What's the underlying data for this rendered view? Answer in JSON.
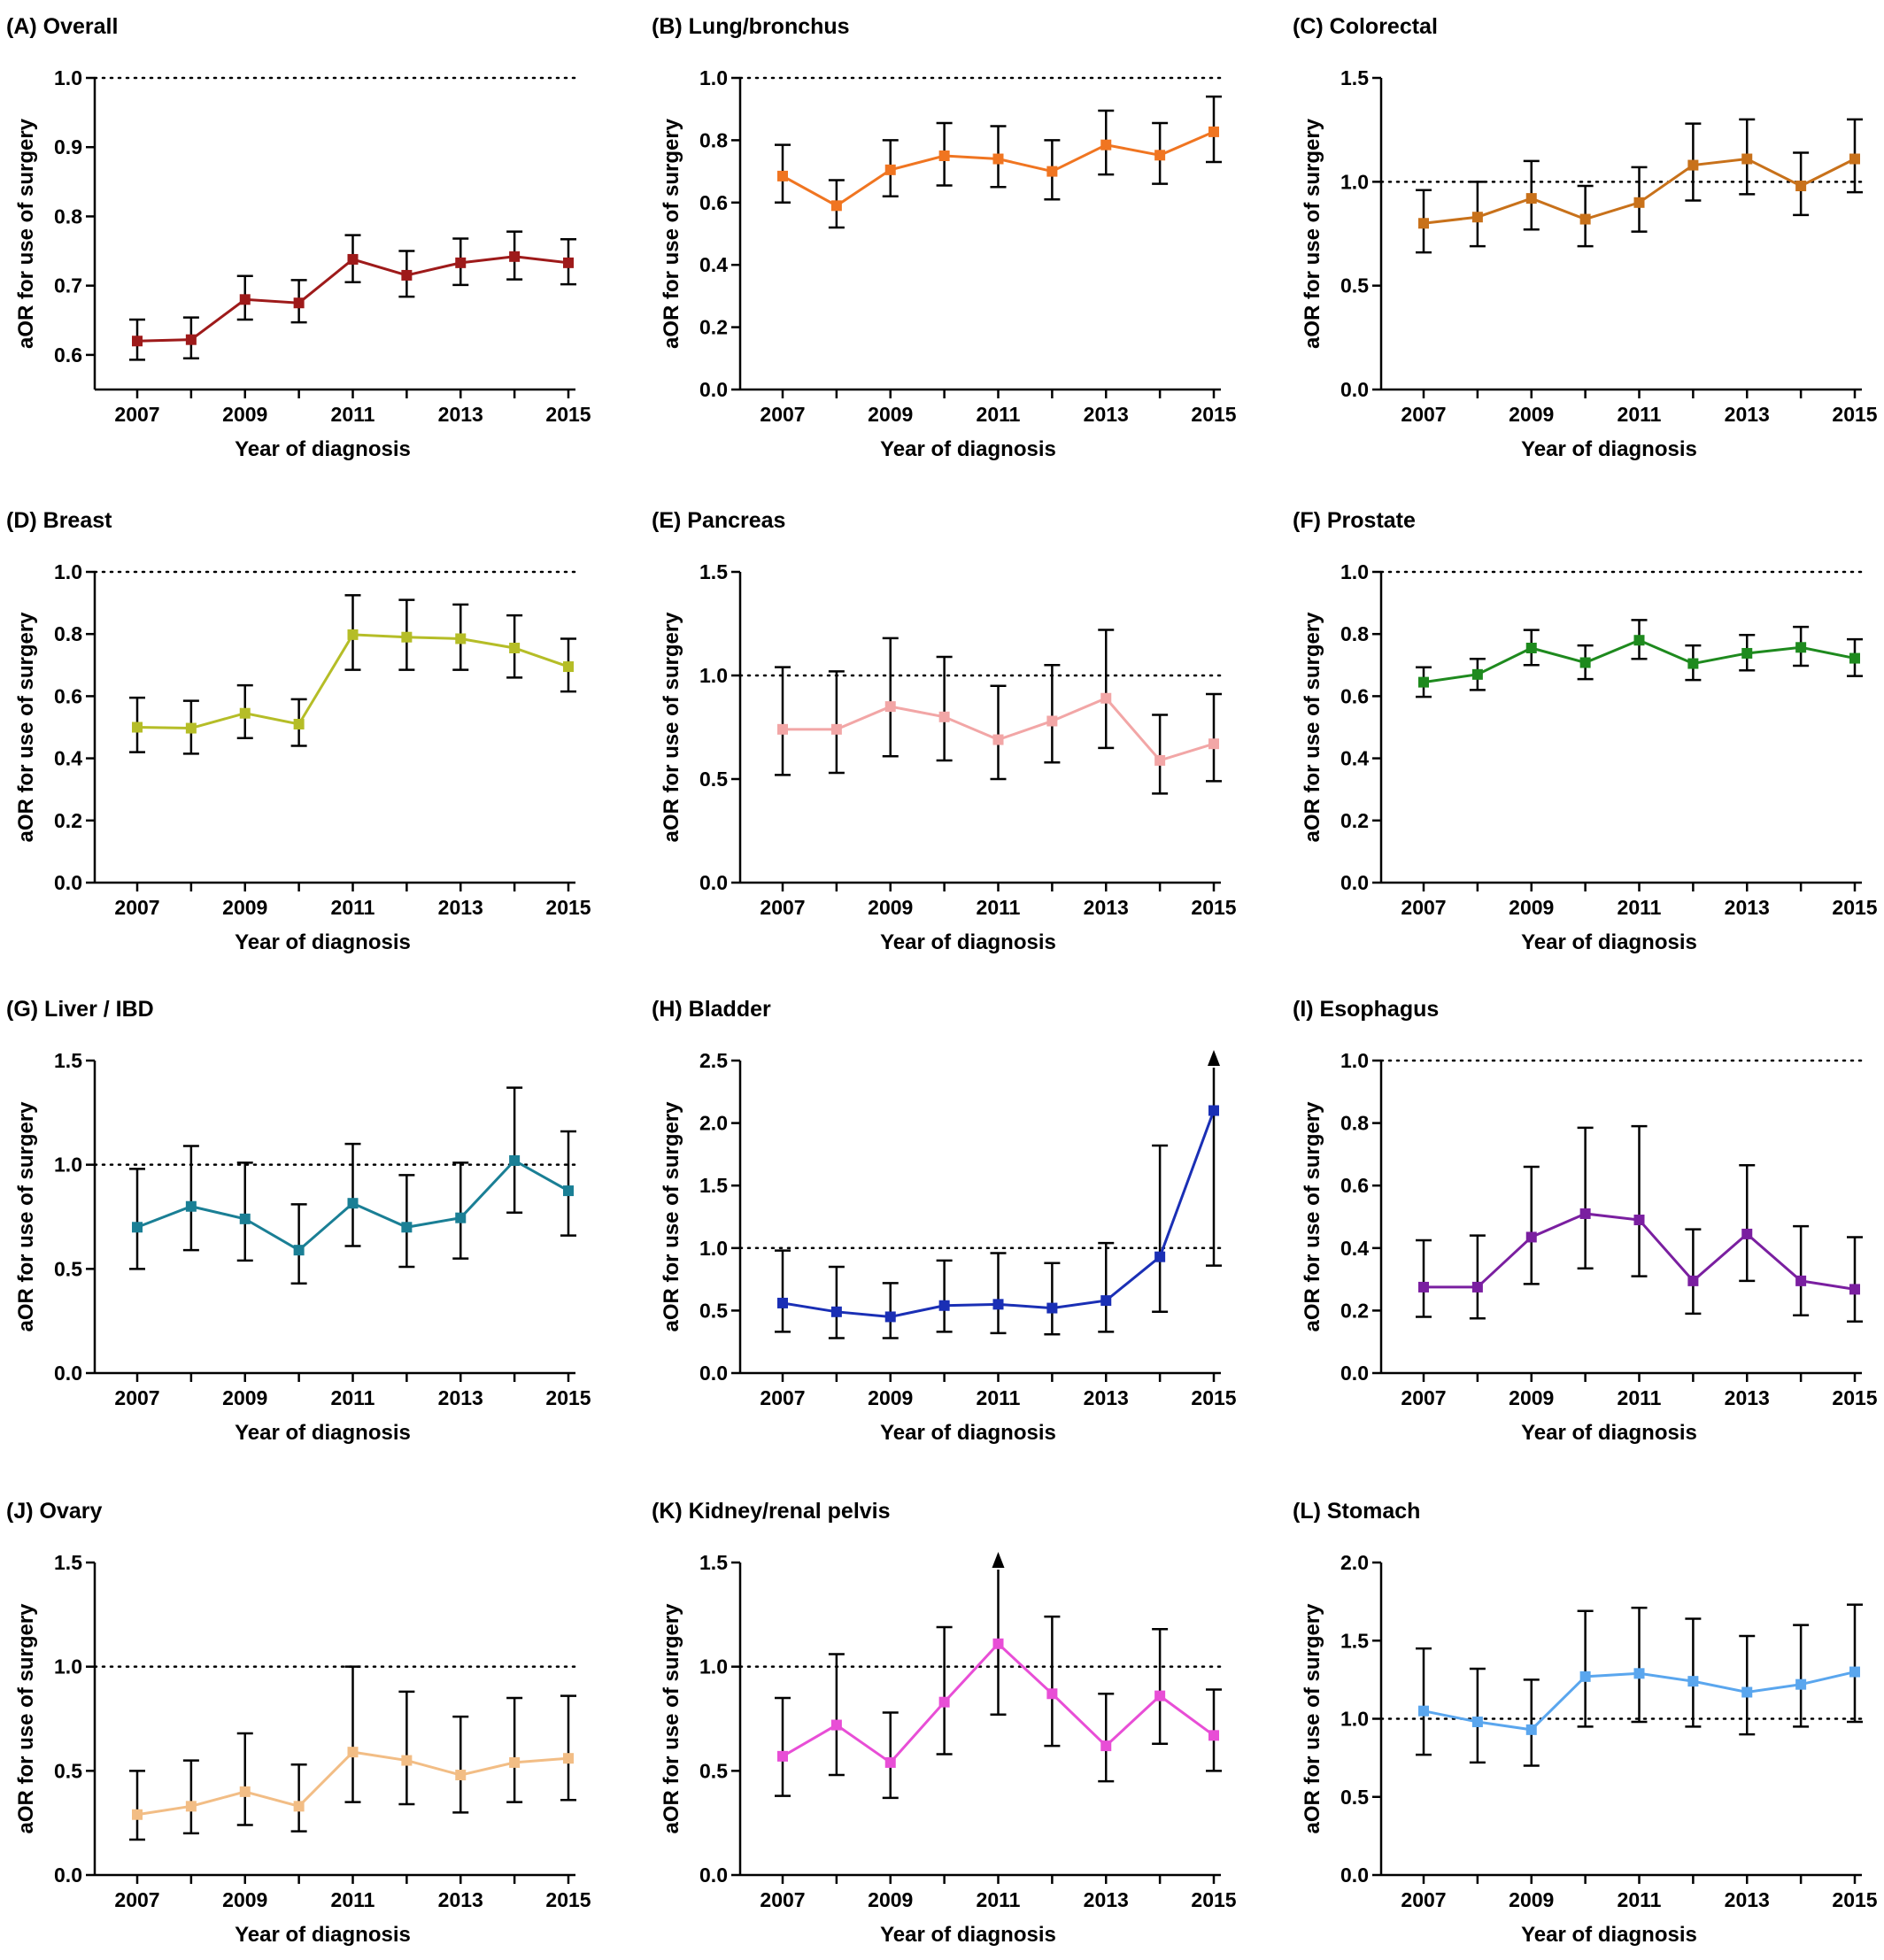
{
  "figure": {
    "x_label": "Year of diagnosis",
    "y_label": "aOR for use of surgery",
    "reference_line": 1.0
  },
  "chart_data": [
    {
      "type": "line",
      "panel": "(A)",
      "title": "Overall",
      "color": "#9e1a1a",
      "ylim": [
        0.55,
        1.0
      ],
      "yticks": [
        "0.6",
        "0.7",
        "0.8",
        "0.9",
        "1.0"
      ],
      "x": [
        2007,
        2008,
        2009,
        2010,
        2011,
        2012,
        2013,
        2014,
        2015
      ],
      "xticks": [
        "2007",
        "2009",
        "2011",
        "2013",
        "2015"
      ],
      "values": [
        0.62,
        0.622,
        0.68,
        0.675,
        0.738,
        0.715,
        0.733,
        0.742,
        0.733
      ],
      "ci_low": [
        0.593,
        0.595,
        0.651,
        0.647,
        0.705,
        0.684,
        0.701,
        0.709,
        0.702
      ],
      "ci_high": [
        0.651,
        0.654,
        0.714,
        0.708,
        0.773,
        0.75,
        0.768,
        0.778,
        0.767
      ],
      "arrow_index": null
    },
    {
      "type": "line",
      "panel": "(B)",
      "title": "Lung/bronchus",
      "color": "#f07521",
      "ylim": [
        0.0,
        1.0
      ],
      "yticks": [
        "0.0",
        "0.2",
        "0.4",
        "0.6",
        "0.8",
        "1.0"
      ],
      "x": [
        2007,
        2008,
        2009,
        2010,
        2011,
        2012,
        2013,
        2014,
        2015
      ],
      "xticks": [
        "2007",
        "2009",
        "2011",
        "2013",
        "2015"
      ],
      "values": [
        0.685,
        0.59,
        0.705,
        0.75,
        0.74,
        0.7,
        0.785,
        0.752,
        0.827
      ],
      "ci_low": [
        0.6,
        0.52,
        0.62,
        0.655,
        0.65,
        0.61,
        0.69,
        0.66,
        0.73
      ],
      "ci_high": [
        0.785,
        0.672,
        0.8,
        0.855,
        0.845,
        0.8,
        0.895,
        0.855,
        0.94
      ],
      "arrow_index": null
    },
    {
      "type": "line",
      "panel": "(C)",
      "title": "Colorectal",
      "color": "#c8711a",
      "ylim": [
        0.0,
        1.5
      ],
      "yticks": [
        "0.0",
        "0.5",
        "1.0",
        "1.5"
      ],
      "x": [
        2007,
        2008,
        2009,
        2010,
        2011,
        2012,
        2013,
        2014,
        2015
      ],
      "xticks": [
        "2007",
        "2009",
        "2011",
        "2013",
        "2015"
      ],
      "values": [
        0.8,
        0.83,
        0.92,
        0.82,
        0.9,
        1.08,
        1.11,
        0.98,
        1.11
      ],
      "ci_low": [
        0.66,
        0.69,
        0.77,
        0.69,
        0.76,
        0.91,
        0.94,
        0.84,
        0.95
      ],
      "ci_high": [
        0.96,
        1.0,
        1.1,
        0.98,
        1.07,
        1.28,
        1.3,
        1.14,
        1.3
      ],
      "arrow_index": null
    },
    {
      "type": "line",
      "panel": "(D)",
      "title": "Breast",
      "color": "#b5bd27",
      "ylim": [
        0.0,
        1.0
      ],
      "yticks": [
        "0.0",
        "0.2",
        "0.4",
        "0.6",
        "0.8",
        "1.0"
      ],
      "x": [
        2007,
        2008,
        2009,
        2010,
        2011,
        2012,
        2013,
        2014,
        2015
      ],
      "xticks": [
        "2007",
        "2009",
        "2011",
        "2013",
        "2015"
      ],
      "values": [
        0.5,
        0.497,
        0.545,
        0.51,
        0.798,
        0.79,
        0.785,
        0.755,
        0.695
      ],
      "ci_low": [
        0.42,
        0.415,
        0.465,
        0.44,
        0.685,
        0.685,
        0.685,
        0.66,
        0.615
      ],
      "ci_high": [
        0.595,
        0.585,
        0.635,
        0.59,
        0.925,
        0.91,
        0.895,
        0.86,
        0.785
      ],
      "arrow_index": null
    },
    {
      "type": "line",
      "panel": "(E)",
      "title": "Pancreas",
      "color": "#f2a6a6",
      "ylim": [
        0.0,
        1.5
      ],
      "yticks": [
        "0.0",
        "0.5",
        "1.0",
        "1.5"
      ],
      "x": [
        2007,
        2008,
        2009,
        2010,
        2011,
        2012,
        2013,
        2014,
        2015
      ],
      "xticks": [
        "2007",
        "2009",
        "2011",
        "2013",
        "2015"
      ],
      "values": [
        0.74,
        0.74,
        0.85,
        0.8,
        0.69,
        0.78,
        0.89,
        0.59,
        0.67
      ],
      "ci_low": [
        0.52,
        0.53,
        0.61,
        0.59,
        0.5,
        0.58,
        0.65,
        0.43,
        0.49
      ],
      "ci_high": [
        1.04,
        1.02,
        1.18,
        1.09,
        0.95,
        1.05,
        1.22,
        0.81,
        0.91
      ],
      "arrow_index": null
    },
    {
      "type": "line",
      "panel": "(F)",
      "title": "Prostate",
      "color": "#1e8a1e",
      "ylim": [
        0.0,
        1.0
      ],
      "yticks": [
        "0.0",
        "0.2",
        "0.4",
        "0.6",
        "0.8",
        "1.0"
      ],
      "x": [
        2007,
        2008,
        2009,
        2010,
        2011,
        2012,
        2013,
        2014,
        2015
      ],
      "xticks": [
        "2007",
        "2009",
        "2011",
        "2013",
        "2015"
      ],
      "values": [
        0.645,
        0.67,
        0.755,
        0.708,
        0.78,
        0.705,
        0.738,
        0.757,
        0.722
      ],
      "ci_low": [
        0.598,
        0.62,
        0.7,
        0.655,
        0.72,
        0.652,
        0.683,
        0.698,
        0.665
      ],
      "ci_high": [
        0.693,
        0.72,
        0.813,
        0.763,
        0.845,
        0.763,
        0.797,
        0.823,
        0.783
      ],
      "arrow_index": null
    },
    {
      "type": "line",
      "panel": "(G)",
      "title": "Liver / IBD",
      "color": "#1a7f95",
      "ylim": [
        0.0,
        1.5
      ],
      "yticks": [
        "0.0",
        "0.5",
        "1.0",
        "1.5"
      ],
      "x": [
        2007,
        2008,
        2009,
        2010,
        2011,
        2012,
        2013,
        2014,
        2015
      ],
      "xticks": [
        "2007",
        "2009",
        "2011",
        "2013",
        "2015"
      ],
      "values": [
        0.7,
        0.8,
        0.74,
        0.59,
        0.815,
        0.7,
        0.745,
        1.02,
        0.875
      ],
      "ci_low": [
        0.5,
        0.59,
        0.54,
        0.43,
        0.61,
        0.51,
        0.55,
        0.77,
        0.66
      ],
      "ci_high": [
        0.98,
        1.09,
        1.01,
        0.81,
        1.1,
        0.95,
        1.01,
        1.37,
        1.16
      ],
      "arrow_index": null
    },
    {
      "type": "line",
      "panel": "(H)",
      "title": "Bladder",
      "color": "#1a2fb5",
      "ylim": [
        0.0,
        2.5
      ],
      "yticks": [
        "0.0",
        "0.5",
        "1.0",
        "1.5",
        "2.0",
        "2.5"
      ],
      "x": [
        2007,
        2008,
        2009,
        2010,
        2011,
        2012,
        2013,
        2014,
        2015
      ],
      "xticks": [
        "2007",
        "2009",
        "2011",
        "2013",
        "2015"
      ],
      "values": [
        0.56,
        0.49,
        0.45,
        0.54,
        0.55,
        0.52,
        0.58,
        0.93,
        2.1
      ],
      "ci_low": [
        0.33,
        0.28,
        0.28,
        0.33,
        0.32,
        0.31,
        0.33,
        0.49,
        0.86
      ],
      "ci_high": [
        0.98,
        0.85,
        0.72,
        0.9,
        0.96,
        0.88,
        1.04,
        1.82,
        2.55
      ],
      "arrow_index": 8
    },
    {
      "type": "line",
      "panel": "(I)",
      "title": "Esophagus",
      "color": "#7a1fa0",
      "ylim": [
        0.0,
        1.0
      ],
      "yticks": [
        "0.0",
        "0.2",
        "0.4",
        "0.6",
        "0.8",
        "1.0"
      ],
      "x": [
        2007,
        2008,
        2009,
        2010,
        2011,
        2012,
        2013,
        2014,
        2015
      ],
      "xticks": [
        "2007",
        "2009",
        "2011",
        "2013",
        "2015"
      ],
      "values": [
        0.275,
        0.275,
        0.435,
        0.51,
        0.49,
        0.295,
        0.445,
        0.295,
        0.268
      ],
      "ci_low": [
        0.18,
        0.175,
        0.285,
        0.335,
        0.31,
        0.19,
        0.295,
        0.185,
        0.165
      ],
      "ci_high": [
        0.425,
        0.44,
        0.66,
        0.785,
        0.79,
        0.46,
        0.665,
        0.47,
        0.435
      ],
      "arrow_index": null
    },
    {
      "type": "line",
      "panel": "(J)",
      "title": "Ovary",
      "color": "#f2bd85",
      "ylim": [
        0.0,
        1.5
      ],
      "yticks": [
        "0.0",
        "0.5",
        "1.0",
        "1.5"
      ],
      "x": [
        2007,
        2008,
        2009,
        2010,
        2011,
        2012,
        2013,
        2014,
        2015
      ],
      "xticks": [
        "2007",
        "2009",
        "2011",
        "2013",
        "2015"
      ],
      "values": [
        0.29,
        0.33,
        0.4,
        0.33,
        0.59,
        0.55,
        0.48,
        0.54,
        0.56
      ],
      "ci_low": [
        0.17,
        0.2,
        0.24,
        0.21,
        0.35,
        0.34,
        0.3,
        0.35,
        0.36
      ],
      "ci_high": [
        0.5,
        0.55,
        0.68,
        0.53,
        1.0,
        0.88,
        0.76,
        0.85,
        0.86
      ],
      "arrow_index": null
    },
    {
      "type": "line",
      "panel": "(K)",
      "title": "Kidney/renal pelvis",
      "color": "#e84ed6",
      "ylim": [
        0.0,
        1.5
      ],
      "yticks": [
        "0.0",
        "0.5",
        "1.0",
        "1.5"
      ],
      "x": [
        2007,
        2008,
        2009,
        2010,
        2011,
        2012,
        2013,
        2014,
        2015
      ],
      "xticks": [
        "2007",
        "2009",
        "2011",
        "2013",
        "2015"
      ],
      "values": [
        0.57,
        0.72,
        0.54,
        0.83,
        1.11,
        0.87,
        0.62,
        0.86,
        0.67
      ],
      "ci_low": [
        0.38,
        0.48,
        0.37,
        0.58,
        0.77,
        0.62,
        0.45,
        0.63,
        0.5
      ],
      "ci_high": [
        0.85,
        1.06,
        0.78,
        1.19,
        1.55,
        1.24,
        0.87,
        1.18,
        0.89
      ],
      "arrow_index": 4
    },
    {
      "type": "line",
      "panel": "(L)",
      "title": "Stomach",
      "color": "#5aa6ee",
      "ylim": [
        0.0,
        2.0
      ],
      "yticks": [
        "0.0",
        "0.5",
        "1.0",
        "1.5",
        "2.0"
      ],
      "x": [
        2007,
        2008,
        2009,
        2010,
        2011,
        2012,
        2013,
        2014,
        2015
      ],
      "xticks": [
        "2007",
        "2009",
        "2011",
        "2013",
        "2015"
      ],
      "values": [
        1.05,
        0.98,
        0.93,
        1.27,
        1.29,
        1.24,
        1.17,
        1.22,
        1.3
      ],
      "ci_low": [
        0.77,
        0.72,
        0.7,
        0.95,
        0.98,
        0.95,
        0.9,
        0.95,
        0.98
      ],
      "ci_high": [
        1.45,
        1.32,
        1.25,
        1.69,
        1.71,
        1.64,
        1.53,
        1.6,
        1.73
      ],
      "arrow_index": null
    }
  ]
}
